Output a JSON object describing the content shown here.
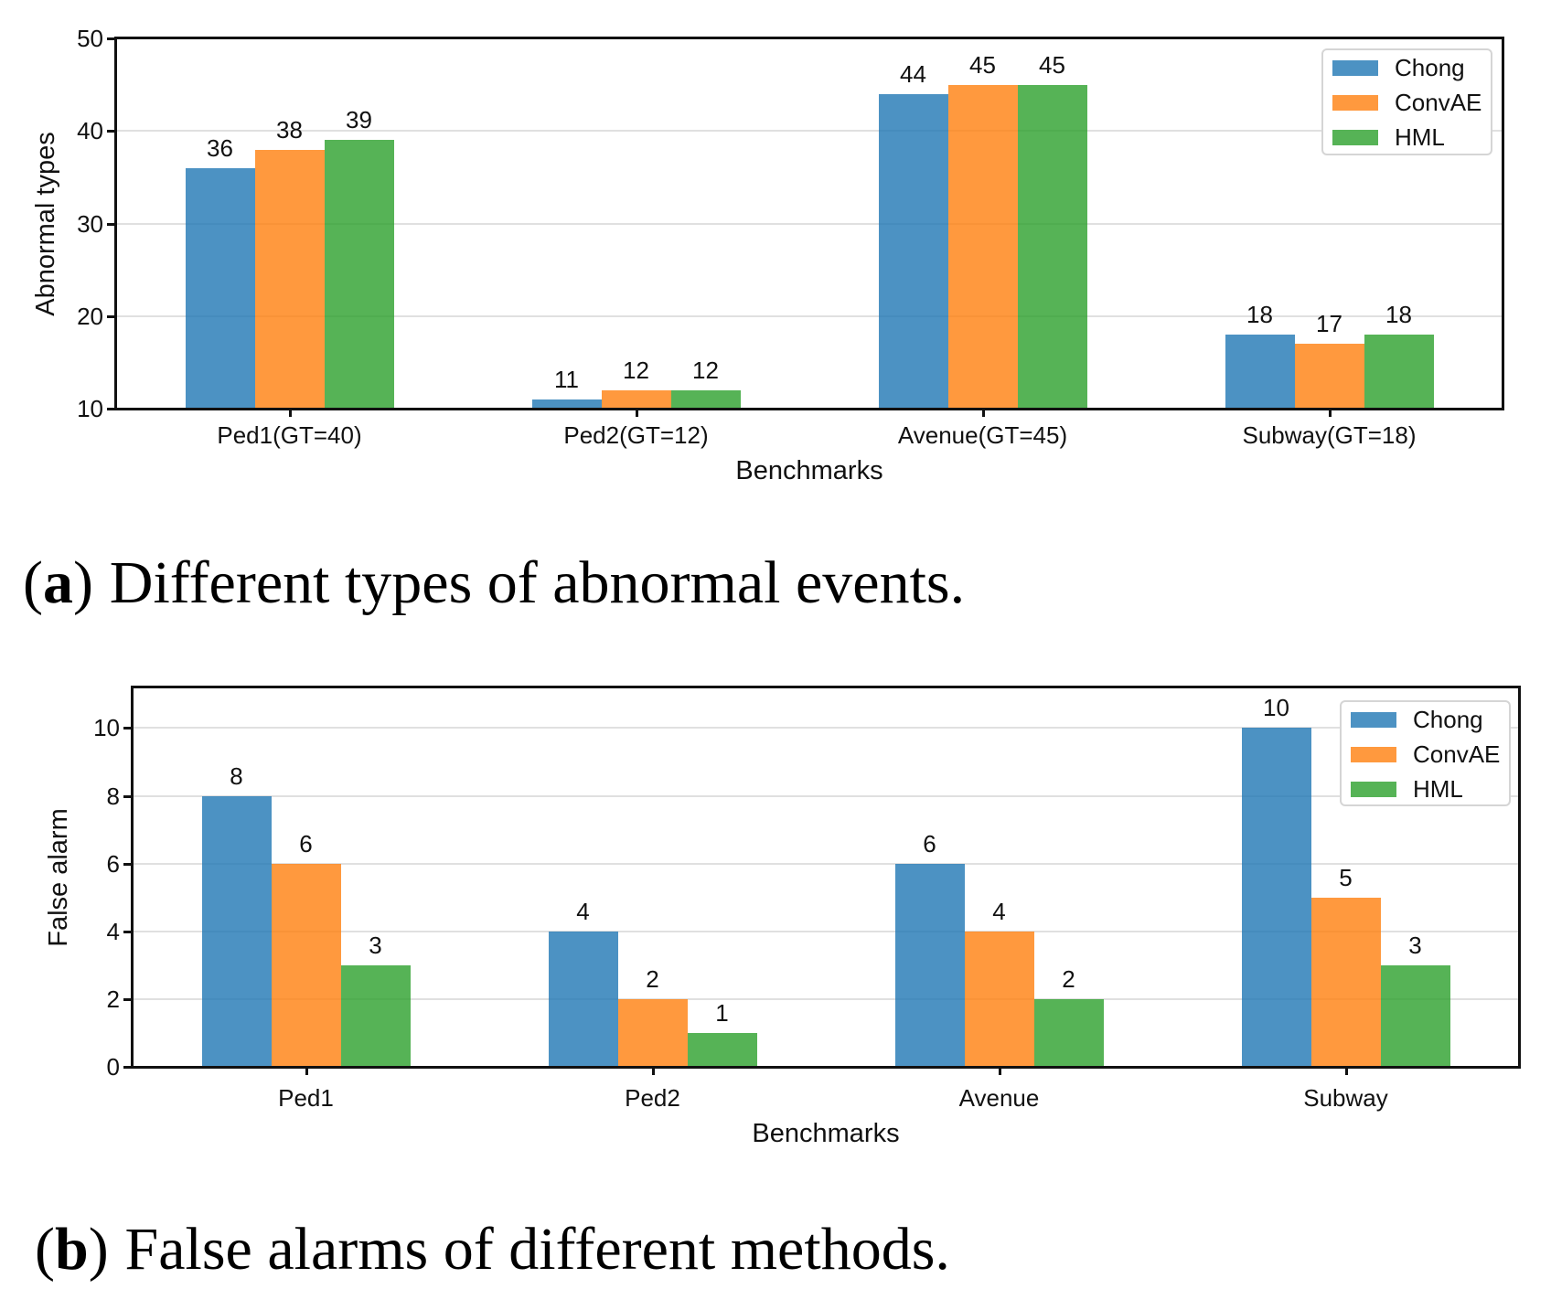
{
  "captions": {
    "a": {
      "open": "(",
      "letter": "a",
      "close": ")",
      "text": "Different types of abnormal events."
    },
    "b": {
      "open": "(",
      "letter": "b",
      "close": ")",
      "text": "False alarms of different methods."
    }
  },
  "colors": {
    "chong_blue": "#1f77b4",
    "convae_orange": "#ff7f0e",
    "hml_green": "#2ca02c",
    "grid": "#e0e0e0",
    "spine": "#111111",
    "legend_border": "#d5d5d5"
  },
  "chart_data": [
    {
      "id": "chart-a",
      "type": "bar",
      "title": "",
      "xlabel": "Benchmarks",
      "ylabel": "Abnormal types",
      "categories": [
        "Ped1(GT=40)",
        "Ped2(GT=12)",
        "Avenue(GT=45)",
        "Subway(GT=18)"
      ],
      "series": [
        {
          "name": "Chong",
          "color": "#1f77b4",
          "values": [
            36,
            11,
            44,
            18
          ]
        },
        {
          "name": "ConvAE",
          "color": "#ff7f0e",
          "values": [
            38,
            12,
            45,
            17
          ]
        },
        {
          "name": "HML",
          "color": "#2ca02c",
          "values": [
            39,
            12,
            45,
            18
          ]
        }
      ],
      "bar_alpha": 0.8,
      "ylim": [
        10,
        50
      ],
      "yticks": [
        10,
        20,
        30,
        40,
        50
      ],
      "grid": true,
      "bar_value_labels": true,
      "legend_position": "upper right"
    },
    {
      "id": "chart-b",
      "type": "bar",
      "title": "",
      "xlabel": "Benchmarks",
      "ylabel": "False alarm",
      "categories": [
        "Ped1",
        "Ped2",
        "Avenue",
        "Subway"
      ],
      "series": [
        {
          "name": "Chong",
          "color": "#1f77b4",
          "values": [
            8,
            4,
            6,
            10
          ]
        },
        {
          "name": "ConvAE",
          "color": "#ff7f0e",
          "values": [
            6,
            2,
            4,
            5
          ]
        },
        {
          "name": "HML",
          "color": "#2ca02c",
          "values": [
            3,
            1,
            2,
            3
          ]
        }
      ],
      "bar_alpha": 0.8,
      "ylim": [
        0,
        11.2
      ],
      "yticks": [
        0,
        2,
        4,
        6,
        8,
        10
      ],
      "grid": true,
      "bar_value_labels": true,
      "legend_position": "upper right"
    }
  ]
}
